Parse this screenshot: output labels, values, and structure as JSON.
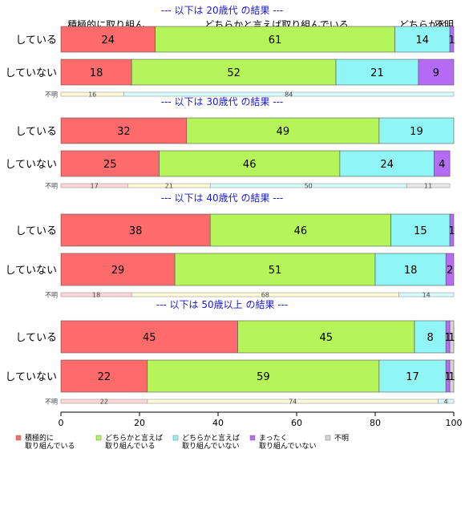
{
  "chart_data": {
    "type": "bar",
    "orientation": "horizontal",
    "stacked": "percent",
    "xlim": [
      0,
      100
    ],
    "x_ticks": [
      0,
      20,
      40,
      60,
      80,
      100
    ],
    "category_headers": [
      "積極的に取り組ん..",
      "どちらかと言えば取り組んでいる",
      "どちらかと",
      "不明"
    ],
    "legend": {
      "placement": "bottom",
      "items": [
        {
          "label": [
            "積極的に",
            "取り組んでいる"
          ],
          "color": "#ff6b6b"
        },
        {
          "label": [
            "どちらかと言えば",
            "取り組んでいる"
          ],
          "color": "#b5f55a"
        },
        {
          "label": [
            "どちらかと言えば",
            "取り組んでいない"
          ],
          "color": "#8ff5f5"
        },
        {
          "label": [
            "まったく",
            "取り組んでいない"
          ],
          "color": "#b56bf5"
        },
        {
          "label": [
            "不明"
          ],
          "color": "#d6d6d6"
        }
      ]
    },
    "groups": [
      {
        "title": "--- 以下は 20歳代 の結果 ---",
        "rows": [
          {
            "label": "している",
            "values": [
              24,
              61,
              14,
              1,
              0
            ]
          },
          {
            "label": "していない",
            "values": [
              18,
              52,
              21,
              9,
              0
            ]
          },
          {
            "label": "不明",
            "small": true,
            "values": [
              0,
              16,
              84,
              0,
              0
            ]
          }
        ]
      },
      {
        "title": "--- 以下は 30歳代 の結果 ---",
        "rows": [
          {
            "label": "している",
            "values": [
              32,
              49,
              19,
              0,
              0
            ]
          },
          {
            "label": "していない",
            "values": [
              25,
              46,
              24,
              4,
              0
            ]
          },
          {
            "label": "不明",
            "small": true,
            "values": [
              17,
              21,
              50,
              0,
              11
            ]
          }
        ]
      },
      {
        "title": "--- 以下は 40歳代 の結果 ---",
        "rows": [
          {
            "label": "している",
            "values": [
              38,
              46,
              15,
              1,
              0
            ]
          },
          {
            "label": "していない",
            "values": [
              29,
              51,
              18,
              2,
              0
            ]
          },
          {
            "label": "不明",
            "small": true,
            "values": [
              18,
              68,
              14,
              0,
              0
            ]
          }
        ]
      },
      {
        "title": "--- 以下は 50歳以上 の結果 ---",
        "rows": [
          {
            "label": "している",
            "values": [
              45,
              45,
              8,
              1,
              1
            ]
          },
          {
            "label": "していない",
            "values": [
              22,
              59,
              17,
              1,
              1
            ]
          },
          {
            "label": "不明",
            "small": true,
            "values": [
              22,
              74,
              4,
              0,
              0
            ]
          }
        ]
      }
    ]
  }
}
